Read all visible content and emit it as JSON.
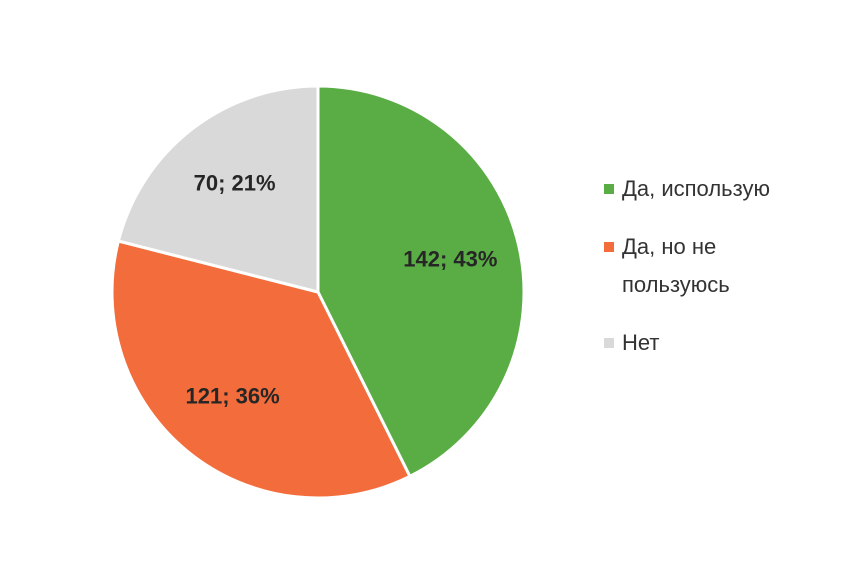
{
  "chart_data": {
    "type": "pie",
    "categories": [
      "Да, использую",
      "Да, но не пользуюсь",
      "Нет"
    ],
    "values": [
      142,
      121,
      70
    ],
    "value_labels": [
      "142; 43%",
      "121; 36%",
      "70; 21%"
    ],
    "colors": [
      "#5aad45",
      "#f36c3b",
      "#d9d9d9"
    ],
    "legend": "right"
  }
}
